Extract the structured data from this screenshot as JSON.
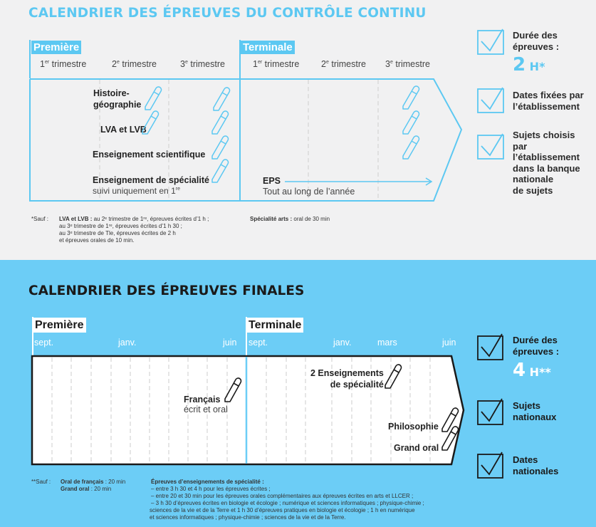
{
  "continu": {
    "title": "CALENDRIER DES ÉPREUVES DU CONTRÔLE CONTINU",
    "premiere": "Première",
    "terminale": "Terminale",
    "trimestre_suffix": "trimestre",
    "t1": "1",
    "t1_sup": "er",
    "t2": "2",
    "t2_sup": "e",
    "t3": "3",
    "t3_sup": "e",
    "subjects": {
      "histoire1": "Histoire-",
      "histoire2": "géographie",
      "lva": "LVA et LVB",
      "sci": "Enseignement scientifique",
      "spec": "Enseignement de spécialité",
      "spec_sub": "suivi uniquement en 1",
      "spec_sub_sup": "re",
      "eps": "EPS",
      "eps_sub": "Tout au long de l’année"
    },
    "notes": {
      "sauf": "*Sauf :",
      "lva_label": "LVA et LVB :",
      "line1": "au 2ᵉ trimestre de 1ʳᵉ, épreuves écrites d’1 h ;",
      "line2": "au 3ᵉ trimestre de 1ʳᵉ, épreuves écrites d’1 h 30 ;",
      "line3": "au 3ᵉ trimestre de Tle, épreuves écrites de 2 h",
      "line4": "et épreuves orales de 10 min.",
      "arts_label": "Spécialité arts :",
      "arts_text": "oral de 30 min"
    },
    "side": {
      "duree1": "Durée des",
      "duree2": "épreuves :",
      "duree_value": "2",
      "duree_unit": "H*",
      "dates1": "Dates fixées par",
      "dates2": "l’établissement",
      "sujets": [
        "Sujets choisis",
        "par",
        "l’établissement",
        "dans la banque",
        "nationale",
        "de sujets"
      ]
    }
  },
  "finales": {
    "title": "CALENDRIER DES ÉPREUVES FINALES",
    "premiere": "Première",
    "terminale": "Terminale",
    "months_p": [
      "sept.",
      "janv.",
      "juin"
    ],
    "months_t": [
      "sept.",
      "janv.",
      "mars",
      "juin"
    ],
    "subjects": {
      "spec1": "2 Enseignements",
      "spec2": "de spécialité",
      "francais": "Français",
      "francais_sub": "écrit et oral",
      "philo": "Philosophie",
      "oral": "Grand oral"
    },
    "notes": {
      "sauf": "**Sauf :",
      "francais_label": "Oral de français",
      "francais_val": ": 20 min",
      "oral_label": "Grand oral",
      "oral_val": ": 20 min",
      "spec_head": "Épreuves d’enseignements de spécialité :",
      "l1": "– entre 3 h 30 et 4 h pour les épreuves écrites ;",
      "l2": "– entre 20 et 30 min pour les épreuves orales complémentaires aux épreuves écrites en arts et LLCER ;",
      "l3": "– 3 h 30 d’épreuves écrites en biologie et écologie ; numérique et sciences informatiques ; physique-chimie ;",
      "l4": "sciences de la vie et de la Terre et 1 h 30 d’épreuves pratiques en biologie et écologie ; 1 h en numérique",
      "l5": "et sciences informatiques ; physique-chimie ; sciences de la vie et de la Terre."
    },
    "side": {
      "duree1": "Durée des",
      "duree2": "épreuves :",
      "duree_value": "4",
      "duree_unit": "H**",
      "sujets1": "Sujets",
      "sujets2": "nationaux",
      "dates1": "Dates",
      "dates2": "nationales"
    }
  },
  "colors": {
    "accent": "#5cc8f2",
    "light_bg": "#f1f1f2",
    "blue_bg": "#6ccdf6",
    "dark": "#1a1a1a"
  }
}
